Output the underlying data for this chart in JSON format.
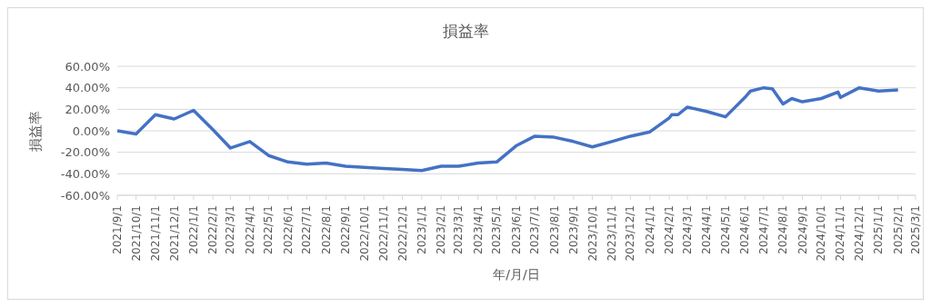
{
  "chart_data": {
    "type": "line",
    "title": "損益率",
    "xlabel": "年/月/日",
    "ylabel": "損益率",
    "color": "#4472c4",
    "grid": "y",
    "x": [
      "2021-09-01",
      "2021-10-01",
      "2021-11-01",
      "2021-12-01",
      "2022-01-01",
      "2022-02-01",
      "2022-03-01",
      "2022-04-01",
      "2022-05-01",
      "2022-06-01",
      "2022-07-01",
      "2022-08-01",
      "2022-09-01",
      "2022-10-01",
      "2022-11-01",
      "2022-12-01",
      "2023-01-01",
      "2023-02-01",
      "2023-03-01",
      "2023-04-01",
      "2023-05-01",
      "2023-06-01",
      "2023-07-01",
      "2023-08-01",
      "2023-09-01",
      "2023-10-01",
      "2023-11-01",
      "2023-12-01",
      "2024-01-01",
      "2024-02-01",
      "2024-02-05",
      "2024-02-15",
      "2024-03-01",
      "2024-04-01",
      "2024-05-01",
      "2024-06-01",
      "2024-06-10",
      "2024-07-01",
      "2024-07-15",
      "2024-08-01",
      "2024-08-15",
      "2024-09-01",
      "2024-10-01",
      "2024-10-28",
      "2024-11-01",
      "2024-12-01",
      "2025-01-01",
      "2025-02-01"
    ],
    "values": [
      0,
      -3,
      15,
      11,
      19,
      1,
      -16,
      -10,
      -23,
      -29,
      -31,
      -30,
      -33,
      -34,
      -35,
      -36,
      -37,
      -33,
      -33,
      -30,
      -29,
      -14,
      -5,
      -6,
      -10,
      -15,
      -10,
      -5,
      -1,
      12,
      15,
      15,
      22,
      18,
      13,
      31,
      37,
      40,
      39,
      25,
      30,
      27,
      30,
      36,
      31,
      40,
      37,
      38
    ],
    "xlim": [
      "2021-09-01",
      "2025-03-01"
    ],
    "xticks": [
      {
        "value": "2021-09-01",
        "label": "2021/9/1"
      },
      {
        "value": "2021-10-01",
        "label": "2021/10/1"
      },
      {
        "value": "2021-11-01",
        "label": "2021/11/1"
      },
      {
        "value": "2021-12-01",
        "label": "2021/12/1"
      },
      {
        "value": "2022-01-01",
        "label": "2022/1/1"
      },
      {
        "value": "2022-02-01",
        "label": "2022/2/1"
      },
      {
        "value": "2022-03-01",
        "label": "2022/3/1"
      },
      {
        "value": "2022-04-01",
        "label": "2022/4/1"
      },
      {
        "value": "2022-05-01",
        "label": "2022/5/1"
      },
      {
        "value": "2022-06-01",
        "label": "2022/6/1"
      },
      {
        "value": "2022-07-01",
        "label": "2022/7/1"
      },
      {
        "value": "2022-08-01",
        "label": "2022/8/1"
      },
      {
        "value": "2022-09-01",
        "label": "2022/9/1"
      },
      {
        "value": "2022-10-01",
        "label": "2022/10/1"
      },
      {
        "value": "2022-11-01",
        "label": "2022/11/1"
      },
      {
        "value": "2022-12-01",
        "label": "2022/12/1"
      },
      {
        "value": "2023-01-01",
        "label": "2023/1/1"
      },
      {
        "value": "2023-02-01",
        "label": "2023/2/1"
      },
      {
        "value": "2023-03-01",
        "label": "2023/3/1"
      },
      {
        "value": "2023-04-01",
        "label": "2023/4/1"
      },
      {
        "value": "2023-05-01",
        "label": "2023/5/1"
      },
      {
        "value": "2023-06-01",
        "label": "2023/6/1"
      },
      {
        "value": "2023-07-01",
        "label": "2023/7/1"
      },
      {
        "value": "2023-08-01",
        "label": "2023/8/1"
      },
      {
        "value": "2023-09-01",
        "label": "2023/9/1"
      },
      {
        "value": "2023-10-01",
        "label": "2023/10/1"
      },
      {
        "value": "2023-11-01",
        "label": "2023/11/1"
      },
      {
        "value": "2023-12-01",
        "label": "2023/12/1"
      },
      {
        "value": "2024-01-01",
        "label": "2024/1/1"
      },
      {
        "value": "2024-02-01",
        "label": "2024/2/1"
      },
      {
        "value": "2024-03-01",
        "label": "2024/3/1"
      },
      {
        "value": "2024-04-01",
        "label": "2024/4/1"
      },
      {
        "value": "2024-05-01",
        "label": "2024/5/1"
      },
      {
        "value": "2024-06-01",
        "label": "2024/6/1"
      },
      {
        "value": "2024-07-01",
        "label": "2024/7/1"
      },
      {
        "value": "2024-08-01",
        "label": "2024/8/1"
      },
      {
        "value": "2024-09-01",
        "label": "2024/9/1"
      },
      {
        "value": "2024-10-01",
        "label": "2024/10/1"
      },
      {
        "value": "2024-11-01",
        "label": "2024/11/1"
      },
      {
        "value": "2024-12-01",
        "label": "2024/12/1"
      },
      {
        "value": "2025-01-01",
        "label": "2025/1/1"
      },
      {
        "value": "2025-02-01",
        "label": "2025/2/1"
      },
      {
        "value": "2025-03-01",
        "label": "2025/3/1"
      }
    ],
    "ylim": [
      -60,
      60
    ],
    "yticks": [
      {
        "value": 60,
        "label": "60.00%"
      },
      {
        "value": 40,
        "label": "40.00%"
      },
      {
        "value": 20,
        "label": "20.00%"
      },
      {
        "value": 0,
        "label": "0.00%"
      },
      {
        "value": -20,
        "label": "-20.00%"
      },
      {
        "value": -40,
        "label": "-40.00%"
      },
      {
        "value": -60,
        "label": "-60.00%"
      }
    ]
  }
}
